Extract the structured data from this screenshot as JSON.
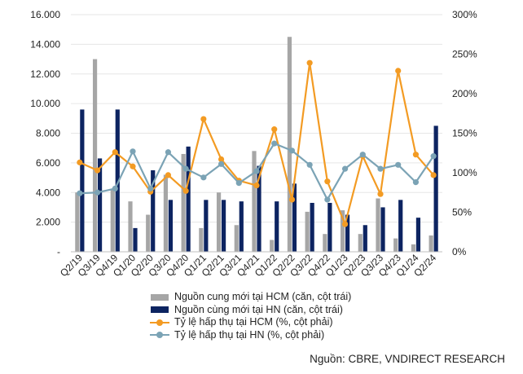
{
  "chart_data": {
    "type": "bar",
    "categories": [
      "Q2/19",
      "Q3/19",
      "Q4/19",
      "Q1/20",
      "Q2/20",
      "Q3/20",
      "Q4/20",
      "Q1/21",
      "Q2/21",
      "Q3/21",
      "Q4/21",
      "Q1/22",
      "Q2/22",
      "Q3/22",
      "Q4/22",
      "Q1/23",
      "Q2/23",
      "Q3/23",
      "Q4/23",
      "Q1/24",
      "Q2/24"
    ],
    "y_left": {
      "lim": [
        0,
        16000
      ],
      "ticks": [
        "-",
        "2.000",
        "4.000",
        "6.000",
        "8.000",
        "10.000",
        "12.000",
        "14.000",
        "16.000"
      ]
    },
    "y_right": {
      "lim": [
        0,
        300
      ],
      "ticks": [
        "0%",
        "50%",
        "100%",
        "150%",
        "200%",
        "250%",
        "300%"
      ]
    },
    "series": [
      {
        "name": "Nguồn cung mới tại HCM (căn, cột trái)",
        "type": "bar",
        "axis": "left",
        "color": "#a6a6a6",
        "values": [
          4000,
          13000,
          4200,
          3400,
          2500,
          5200,
          6600,
          1600,
          4000,
          1800,
          6800,
          800,
          14500,
          2700,
          1200,
          2800,
          1200,
          3600,
          900,
          500,
          1100
        ]
      },
      {
        "name": "Nguồn cùng mới tại HN (căn, cột trái)",
        "type": "bar",
        "axis": "left",
        "color": "#0d2461",
        "values": [
          9600,
          6300,
          9600,
          1600,
          5500,
          3500,
          7100,
          3500,
          3500,
          3400,
          5800,
          3400,
          4600,
          3300,
          3300,
          2500,
          1800,
          3000,
          3500,
          2300,
          8500
        ]
      },
      {
        "name": "Tỷ lệ hấp thụ tại HCM (%, cột phải)",
        "type": "line",
        "axis": "right",
        "color": "#f39b23",
        "values": [
          113,
          103,
          126,
          108,
          76,
          97,
          77,
          168,
          117,
          90,
          84,
          155,
          66,
          239,
          89,
          35,
          121,
          73,
          229,
          123,
          97
        ]
      },
      {
        "name": "Tỷ lệ hấp thụ tại HN (%, cột phải)",
        "type": "line",
        "axis": "right",
        "color": "#7ba3b5",
        "values": [
          74,
          75,
          80,
          127,
          80,
          126,
          105,
          94,
          111,
          87,
          102,
          137,
          128,
          110,
          66,
          105,
          123,
          105,
          110,
          88,
          121
        ]
      }
    ]
  },
  "source": "Nguồn: CBRE, VNDIRECT RESEARCH"
}
